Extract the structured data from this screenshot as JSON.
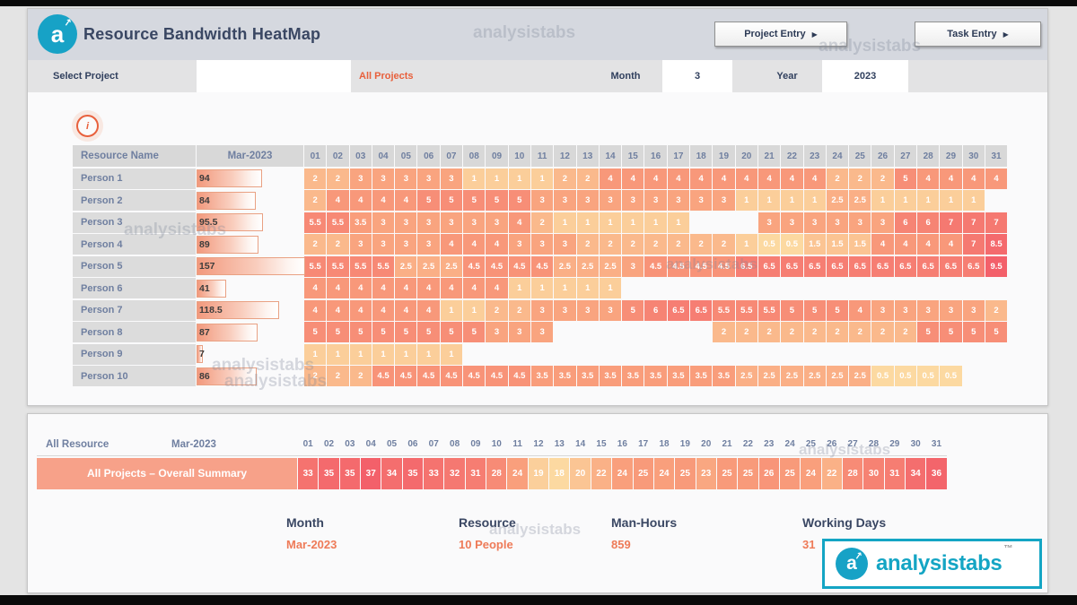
{
  "header": {
    "title": "Resource Bandwidth HeatMap",
    "buttons": [
      {
        "label": "Project Entry",
        "arrow": "▶"
      },
      {
        "label": "Task Entry",
        "arrow": "▶"
      }
    ]
  },
  "filters": {
    "select_label": "Select Project",
    "selected_project": "All Projects",
    "month_label": "Month",
    "month_value": "3",
    "year_label": "Year",
    "year_value": "2023"
  },
  "info": {
    "glyph": "i"
  },
  "heatmap": {
    "name_header": "Resource Name",
    "month_header": "Mar-2023",
    "day_columns": [
      "01",
      "02",
      "03",
      "04",
      "05",
      "06",
      "07",
      "08",
      "09",
      "10",
      "11",
      "12",
      "13",
      "14",
      "15",
      "16",
      "17",
      "18",
      "19",
      "20",
      "21",
      "22",
      "23",
      "24",
      "25",
      "26",
      "27",
      "28",
      "29",
      "30",
      "31"
    ],
    "bar_max": 157,
    "scale": {
      "min": 0.5,
      "max": 9.5
    },
    "rows": [
      {
        "name": "Person 1",
        "total": 94,
        "cells": [
          2,
          2,
          3,
          3,
          3,
          3,
          3,
          1,
          1,
          1,
          1,
          2,
          2,
          4,
          4,
          4,
          4,
          4,
          4,
          4,
          4,
          4,
          4,
          2,
          2,
          2,
          5,
          4,
          4,
          4,
          4
        ]
      },
      {
        "name": "Person 2",
        "total": 84,
        "cells": [
          2,
          4,
          4,
          4,
          4,
          5,
          5,
          5,
          5,
          5,
          3,
          3,
          3,
          3,
          3,
          3,
          3,
          3,
          3,
          1,
          1,
          1,
          1,
          2.5,
          2.5,
          1,
          1,
          1,
          1,
          1,
          null
        ]
      },
      {
        "name": "Person 3",
        "total": 95.5,
        "cells": [
          5.5,
          5.5,
          3.5,
          3,
          3,
          3,
          3,
          3,
          3,
          4,
          2,
          1,
          1,
          1,
          1,
          1,
          1,
          null,
          null,
          null,
          3,
          3,
          3,
          3,
          3,
          3,
          6,
          6,
          7,
          7,
          7
        ]
      },
      {
        "name": "Person 4",
        "total": 89,
        "cells": [
          2,
          2,
          3,
          3,
          3,
          3,
          4,
          4,
          4,
          3,
          3,
          3,
          2,
          2,
          2,
          2,
          2,
          2,
          2,
          1,
          0.5,
          0.5,
          1.5,
          1.5,
          1.5,
          4,
          4,
          4,
          4,
          7,
          8.5
        ]
      },
      {
        "name": "Person 5",
        "total": 157,
        "cells": [
          5.5,
          5.5,
          5.5,
          5.5,
          2.5,
          2.5,
          2.5,
          4.5,
          4.5,
          4.5,
          4.5,
          2.5,
          2.5,
          2.5,
          3,
          4.5,
          4.5,
          4.5,
          4.5,
          6.5,
          6.5,
          6.5,
          6.5,
          6.5,
          6.5,
          6.5,
          6.5,
          6.5,
          6.5,
          6.5,
          9.5
        ]
      },
      {
        "name": "Person 6",
        "total": 41,
        "cells": [
          4,
          4,
          4,
          4,
          4,
          4,
          4,
          4,
          4,
          1,
          1,
          1,
          1,
          1,
          null,
          null,
          null,
          null,
          null,
          null,
          null,
          null,
          null,
          null,
          null,
          null,
          null,
          null,
          null,
          null,
          null
        ]
      },
      {
        "name": "Person 7",
        "total": 118.5,
        "cells": [
          4,
          4,
          4,
          4,
          4,
          4,
          1,
          1,
          2,
          2,
          3,
          3,
          3,
          3,
          5,
          6,
          6.5,
          6.5,
          5.5,
          5.5,
          5.5,
          5,
          5,
          5,
          4,
          3,
          3,
          3,
          3,
          3,
          2
        ]
      },
      {
        "name": "Person 8",
        "total": 87,
        "cells": [
          5,
          5,
          5,
          5,
          5,
          5,
          5,
          5,
          3,
          3,
          3,
          null,
          null,
          null,
          null,
          null,
          null,
          null,
          2,
          2,
          2,
          2,
          2,
          2,
          2,
          2,
          2,
          5,
          5,
          5,
          5
        ]
      },
      {
        "name": "Person 9",
        "total": 7,
        "cells": [
          1,
          1,
          1,
          1,
          1,
          1,
          1,
          null,
          null,
          null,
          null,
          null,
          null,
          null,
          null,
          null,
          null,
          null,
          null,
          null,
          null,
          null,
          null,
          null,
          null,
          null,
          null,
          null,
          null,
          null,
          null
        ]
      },
      {
        "name": "Person 10",
        "total": 86,
        "cells": [
          2,
          2,
          2,
          4.5,
          4.5,
          4.5,
          4.5,
          4.5,
          4.5,
          4.5,
          3.5,
          3.5,
          3.5,
          3.5,
          3.5,
          3.5,
          3.5,
          3.5,
          3.5,
          2.5,
          2.5,
          2.5,
          2.5,
          2.5,
          2.5,
          0.5,
          0.5,
          0.5,
          0.5,
          null,
          null
        ]
      }
    ]
  },
  "summary": {
    "resource_header": "All Resource",
    "month_header": "Mar-2023",
    "row_label": "All Projects – Overall Summary",
    "scale": {
      "min": 18,
      "max": 37
    },
    "values": [
      33,
      35,
      35,
      37,
      34,
      35,
      33,
      32,
      31,
      28,
      24,
      19,
      18,
      20,
      22,
      24,
      25,
      24,
      25,
      23,
      25,
      25,
      26,
      25,
      24,
      22,
      28,
      30,
      31,
      34,
      36
    ]
  },
  "stats": [
    {
      "label": "Month",
      "value": "Mar-2023"
    },
    {
      "label": "Resource",
      "value": "10 People"
    },
    {
      "label": "Man-Hours",
      "value": "859"
    },
    {
      "label": "Working Days",
      "value": "31"
    }
  ],
  "brand": {
    "watermark": "analysistabs",
    "logo_text": "analysistabs",
    "tm": "™",
    "logo_letter": "a",
    "logo_arrow": "↗"
  },
  "colors": {
    "accent_orange": "#E8603C",
    "stat_value_orange": "#EE7B58",
    "heat_light": "#FCD9A1",
    "heat_mid": "#F9A07C",
    "heat_dark": "#F3606A",
    "teal": "#14A5C4"
  }
}
